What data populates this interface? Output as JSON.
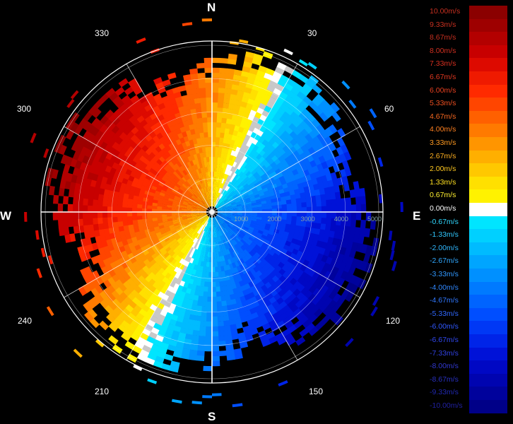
{
  "compass": {
    "north": "N",
    "south": "S",
    "east": "E",
    "west": "W",
    "azimuths": [
      "30",
      "60",
      "120",
      "150",
      "210",
      "240",
      "300",
      "330"
    ],
    "azimuth_degrees": [
      30,
      60,
      120,
      150,
      210,
      240,
      300,
      330
    ]
  },
  "range_rings": {
    "labels": [
      "1000",
      "2000",
      "3000",
      "4000",
      "5000"
    ],
    "values": [
      1000,
      2000,
      3000,
      4000,
      5000
    ],
    "max_range": 5000
  },
  "legend": {
    "items": [
      {
        "label": "10.00m/s",
        "color": "#8b0000",
        "text_color": "#c83020"
      },
      {
        "label": "9.33m/s",
        "color": "#9e0000",
        "text_color": "#c83020"
      },
      {
        "label": "8.67m/s",
        "color": "#b30000",
        "text_color": "#c83020"
      },
      {
        "label": "8.00m/s",
        "color": "#c80000",
        "text_color": "#d03020"
      },
      {
        "label": "7.33m/s",
        "color": "#dd0a00",
        "text_color": "#d83020"
      },
      {
        "label": "6.67m/s",
        "color": "#ef1a00",
        "text_color": "#e03820"
      },
      {
        "label": "6.00m/s",
        "color": "#ff2a00",
        "text_color": "#e84020"
      },
      {
        "label": "5.33m/s",
        "color": "#ff4500",
        "text_color": "#f05020"
      },
      {
        "label": "4.67m/s",
        "color": "#ff6000",
        "text_color": "#f86820"
      },
      {
        "label": "4.00m/s",
        "color": "#ff7a00",
        "text_color": "#ff8020"
      },
      {
        "label": "3.33m/s",
        "color": "#ff9500",
        "text_color": "#ff9a20"
      },
      {
        "label": "2.67m/s",
        "color": "#ffaf00",
        "text_color": "#ffb020"
      },
      {
        "label": "2.00m/s",
        "color": "#ffc800",
        "text_color": "#ffc820"
      },
      {
        "label": "1.33m/s",
        "color": "#ffe000",
        "text_color": "#ffe020"
      },
      {
        "label": "0.67m/s",
        "color": "#fff200",
        "text_color": "#fff030"
      },
      {
        "label": "0.00m/s",
        "color": "#ffffff",
        "text_color": "#ffffff"
      },
      {
        "label": "-0.67m/s",
        "color": "#00e5ff",
        "text_color": "#30d8ff"
      },
      {
        "label": "-1.33m/s",
        "color": "#00d0ff",
        "text_color": "#30c8ff"
      },
      {
        "label": "-2.00m/s",
        "color": "#00bbff",
        "text_color": "#30b8ff"
      },
      {
        "label": "-2.67m/s",
        "color": "#00a5ff",
        "text_color": "#30a8ff"
      },
      {
        "label": "-3.33m/s",
        "color": "#0090ff",
        "text_color": "#3098ff"
      },
      {
        "label": "-4.00m/s",
        "color": "#007aff",
        "text_color": "#3088ff"
      },
      {
        "label": "-4.67m/s",
        "color": "#0064ff",
        "text_color": "#3078ff"
      },
      {
        "label": "-5.33m/s",
        "color": "#004eff",
        "text_color": "#3068ff"
      },
      {
        "label": "-6.00m/s",
        "color": "#0038f5",
        "text_color": "#3058ff"
      },
      {
        "label": "-6.67m/s",
        "color": "#0024e8",
        "text_color": "#3048f0"
      },
      {
        "label": "-7.33m/s",
        "color": "#0012d8",
        "text_color": "#3040e0"
      },
      {
        "label": "-8.00m/s",
        "color": "#0008c4",
        "text_color": "#3038d0"
      },
      {
        "label": "-8.67m/s",
        "color": "#0004b0",
        "text_color": "#2830c0"
      },
      {
        "label": "-9.33m/s",
        "color": "#00029c",
        "text_color": "#2028b0"
      },
      {
        "label": "-10.00m/s",
        "color": "#000088",
        "text_color": "#2020a0"
      }
    ]
  }
}
